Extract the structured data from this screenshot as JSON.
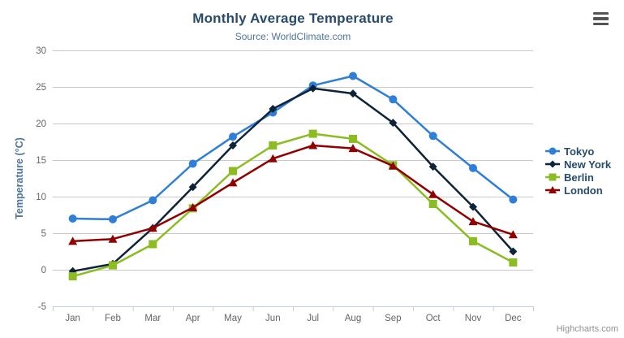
{
  "credit": {
    "label": "Highcharts.com"
  },
  "toolbar": {
    "export_icon": "hamburger-icon"
  },
  "chart_data": {
    "type": "line",
    "title": "Monthly Average Temperature",
    "subtitle": "Source: WorldClimate.com",
    "categories": [
      "Jan",
      "Feb",
      "Mar",
      "Apr",
      "May",
      "Jun",
      "Jul",
      "Aug",
      "Sep",
      "Oct",
      "Nov",
      "Dec"
    ],
    "xlabel": "",
    "ylabel": "Temperature (°C)",
    "ylim": [
      -5,
      30
    ],
    "ytick_interval": 5,
    "yticks": [
      -5,
      0,
      5,
      10,
      15,
      20,
      25,
      30
    ],
    "grid": true,
    "legend_position": "right",
    "series": [
      {
        "name": "Tokyo",
        "marker": "circle",
        "color": "#2f7ed8",
        "values": [
          7.0,
          6.9,
          9.5,
          14.5,
          18.2,
          21.5,
          25.2,
          26.5,
          23.3,
          18.3,
          13.9,
          9.6
        ]
      },
      {
        "name": "New York",
        "marker": "diamond",
        "color": "#0d233a",
        "values": [
          -0.2,
          0.8,
          5.7,
          11.3,
          17.0,
          22.0,
          24.8,
          24.1,
          20.1,
          14.1,
          8.6,
          2.5
        ]
      },
      {
        "name": "Berlin",
        "marker": "square",
        "color": "#8bbc21",
        "values": [
          -0.9,
          0.6,
          3.5,
          8.4,
          13.5,
          17.0,
          18.6,
          17.9,
          14.3,
          9.0,
          3.9,
          1.0
        ]
      },
      {
        "name": "London",
        "marker": "triangle",
        "color": "#910000",
        "values": [
          3.9,
          4.2,
          5.7,
          8.5,
          11.9,
          15.2,
          17.0,
          16.6,
          14.2,
          10.3,
          6.6,
          4.8
        ]
      }
    ],
    "style": {
      "grid_color": "#c9c9c9",
      "axis_line_color": "#c0d0e0",
      "axis_label_color": "#666666",
      "axis_title_color": "#4d759e",
      "legend_text_color": "#274b6d",
      "title_color": "#274b6d",
      "subtitle_color": "#4d759e"
    }
  }
}
